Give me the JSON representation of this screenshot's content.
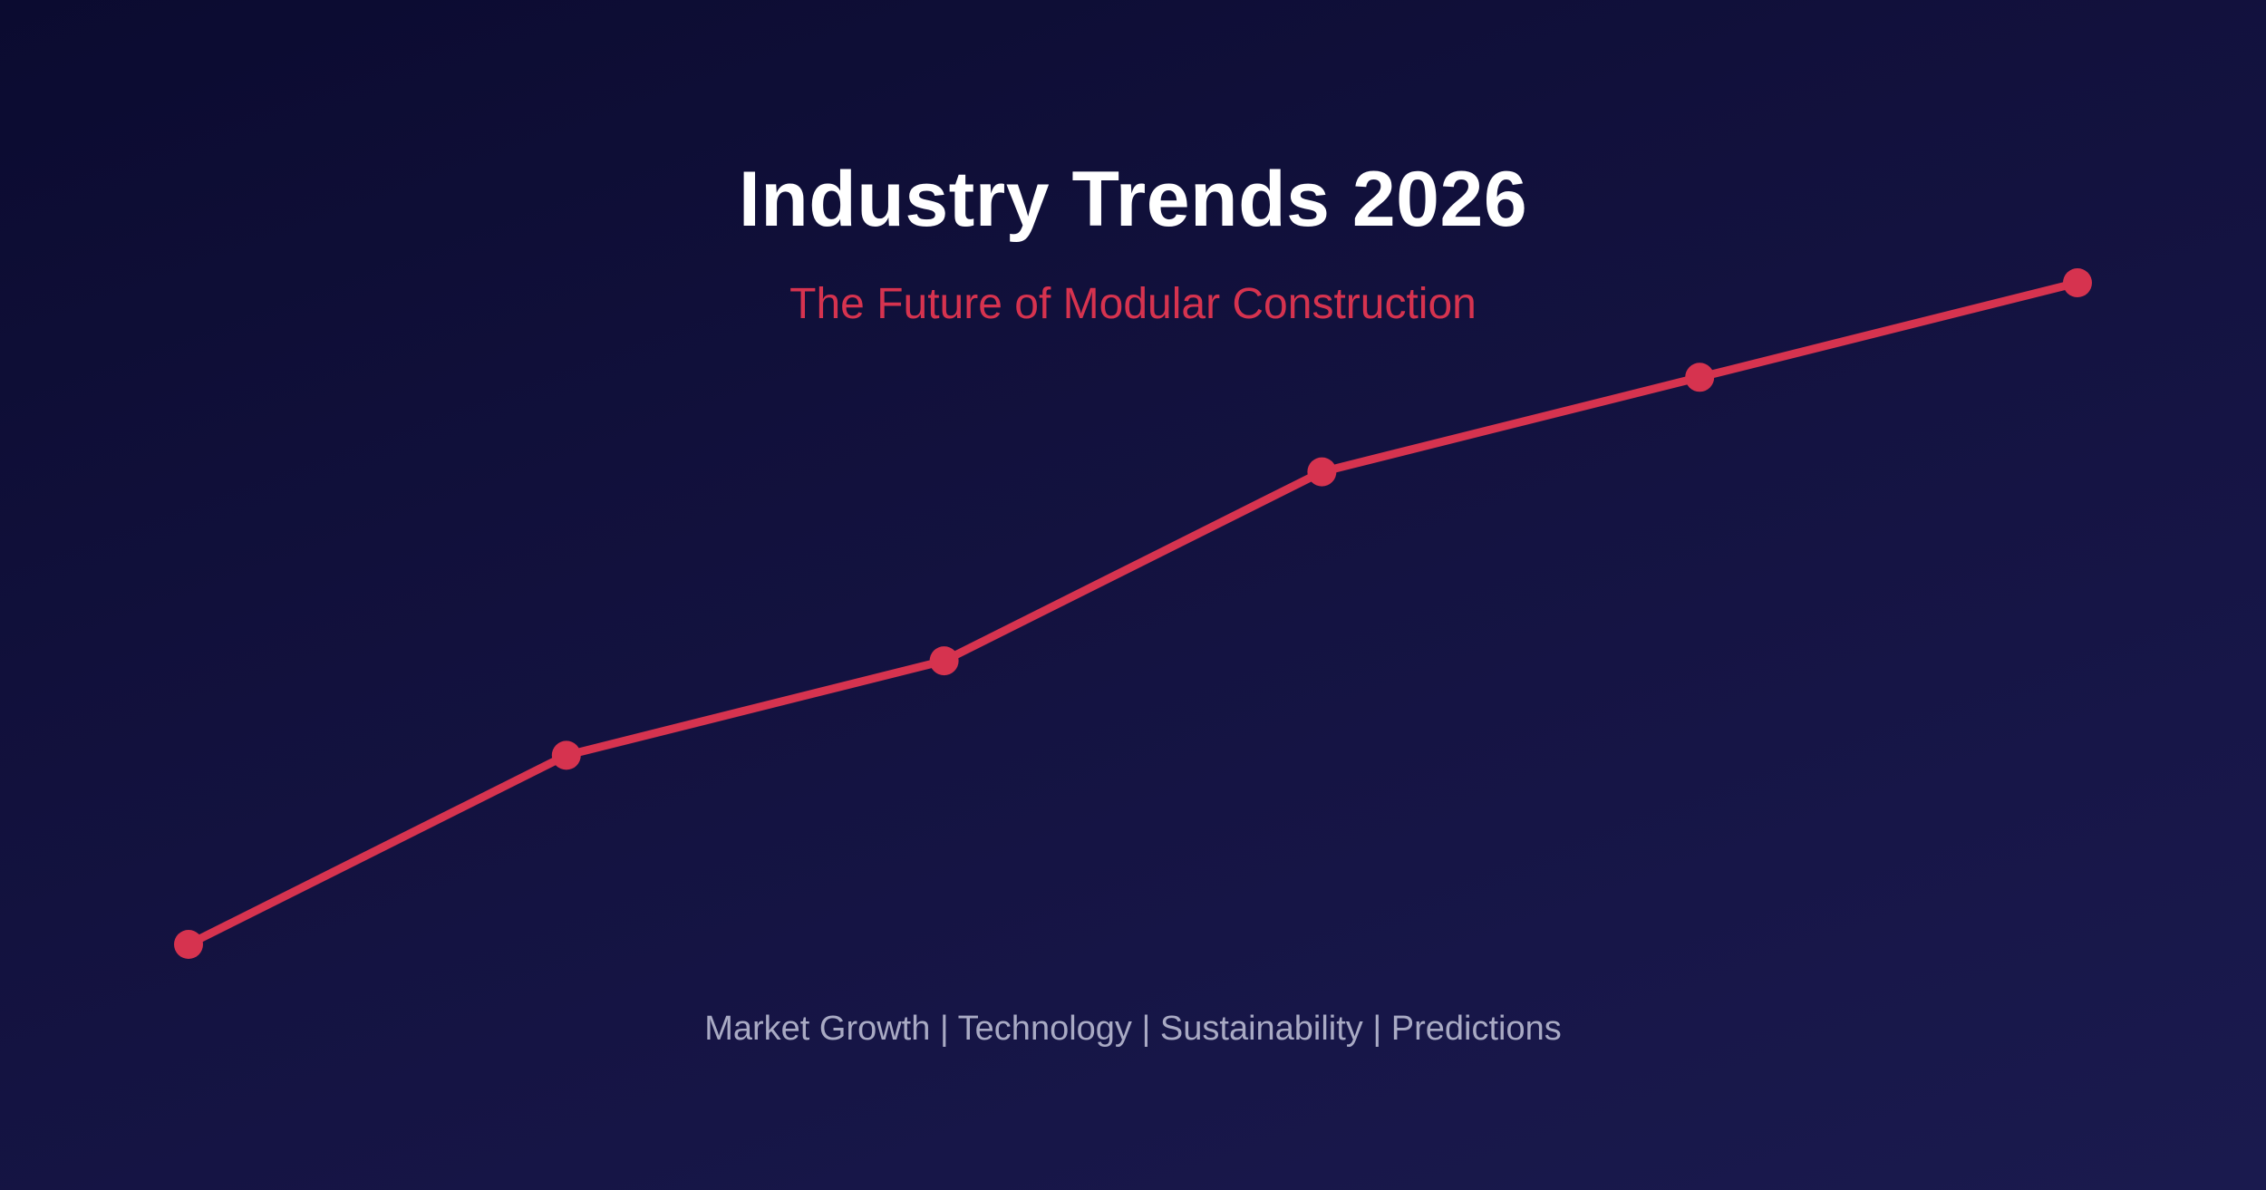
{
  "headline": "Industry Trends 2026",
  "subheadline": "The Future of Modular Construction",
  "topics_line": "Market Growth | Technology | Sustainability | Predictions",
  "colors": {
    "accent": "#d6334f",
    "title": "#ffffff",
    "muted": "#a9aac4",
    "background_start": "#0b0b30",
    "background_end": "#1a1a4e"
  },
  "chart_data": {
    "type": "line",
    "title": "",
    "xlabel": "",
    "ylabel": "",
    "x": [
      1,
      2,
      3,
      4,
      5,
      6
    ],
    "series": [
      {
        "values": [
          0,
          2,
          3,
          5,
          6,
          7
        ]
      }
    ],
    "xlim": [
      1,
      6
    ],
    "ylim": [
      0,
      7
    ],
    "grid": false,
    "legend": "none"
  }
}
